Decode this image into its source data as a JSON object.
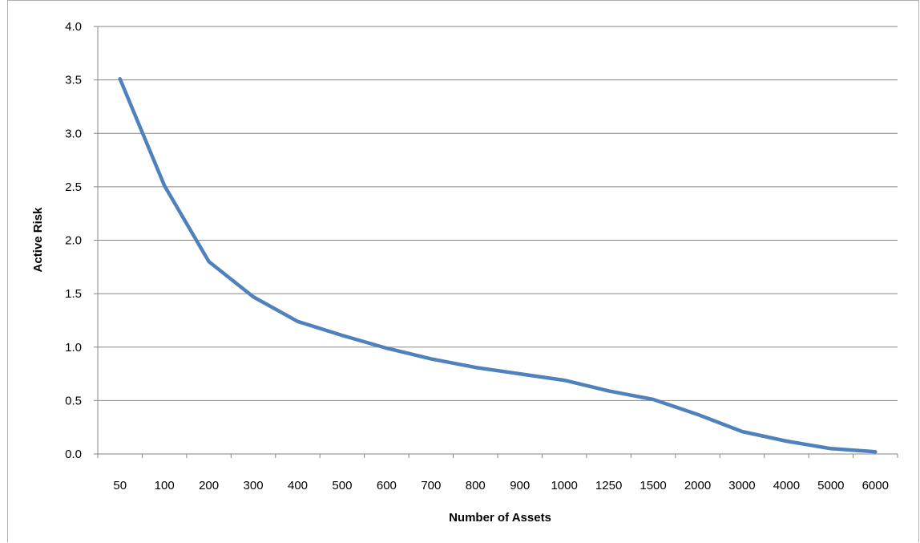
{
  "chart_data": {
    "type": "line",
    "title": "",
    "xlabel": "Number of Assets",
    "ylabel": "Active Risk",
    "categories": [
      "50",
      "100",
      "200",
      "300",
      "400",
      "500",
      "600",
      "700",
      "800",
      "900",
      "1000",
      "1250",
      "1500",
      "2000",
      "3000",
      "4000",
      "5000",
      "6000"
    ],
    "series": [
      {
        "values": [
          3.51,
          2.51,
          1.8,
          1.47,
          1.24,
          1.11,
          0.99,
          0.89,
          0.81,
          0.75,
          0.69,
          0.59,
          0.51,
          0.37,
          0.21,
          0.12,
          0.05,
          0.02
        ],
        "color": "#4f81bd"
      }
    ],
    "ylim": [
      0,
      4.0
    ],
    "yticks": [
      "0.0",
      "0.5",
      "1.0",
      "1.5",
      "2.0",
      "2.5",
      "3.0",
      "3.5",
      "4.0"
    ],
    "grid": true,
    "legend": "none"
  }
}
